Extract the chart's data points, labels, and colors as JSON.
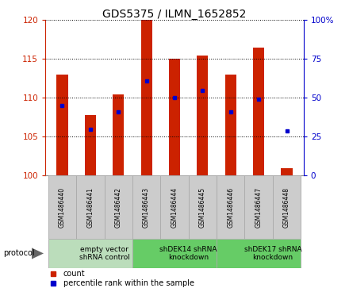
{
  "title": "GDS5375 / ILMN_1652852",
  "samples": [
    "GSM1486440",
    "GSM1486441",
    "GSM1486442",
    "GSM1486443",
    "GSM1486444",
    "GSM1486445",
    "GSM1486446",
    "GSM1486447",
    "GSM1486448"
  ],
  "count_values": [
    113.0,
    107.8,
    110.5,
    120.0,
    115.0,
    115.5,
    113.0,
    116.5,
    101.0
  ],
  "percentile_values": [
    109.0,
    106.0,
    108.2,
    112.2,
    110.0,
    111.0,
    108.2,
    109.8,
    105.8
  ],
  "ylim_left": [
    100,
    120
  ],
  "ylim_right": [
    0,
    100
  ],
  "yticks_left": [
    100,
    105,
    110,
    115,
    120
  ],
  "yticks_right": [
    0,
    25,
    50,
    75,
    100
  ],
  "ytick_right_labels": [
    "0",
    "25",
    "50",
    "75",
    "100%"
  ],
  "bar_color": "#cc2200",
  "dot_color": "#0000cc",
  "bar_base": 100,
  "bar_width": 0.4,
  "groups": [
    {
      "label": "empty vector\nshRNA control",
      "start": 0,
      "end": 3,
      "color": "#bbddbb"
    },
    {
      "label": "shDEK14 shRNA\nknockdown",
      "start": 3,
      "end": 6,
      "color": "#66cc66"
    },
    {
      "label": "shDEK17 shRNA\nknockdown",
      "start": 6,
      "end": 9,
      "color": "#66cc66"
    }
  ],
  "legend_items": [
    {
      "color": "#cc2200",
      "label": "count"
    },
    {
      "color": "#0000cc",
      "label": "percentile rank within the sample"
    }
  ],
  "title_fontsize": 10,
  "axis_color_left": "#cc2200",
  "axis_color_right": "#0000cc",
  "sample_box_color": "#cccccc",
  "sample_box_edge": "#aaaaaa",
  "fig_bg": "#ffffff"
}
